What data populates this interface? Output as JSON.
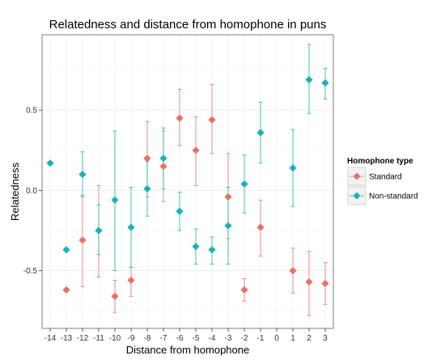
{
  "chart_data": {
    "type": "scatter",
    "title": "Relatedness and distance from homophone in puns",
    "xlabel": "Distance from homophone",
    "ylabel": "Relatedness",
    "x_ticks": [
      "-14",
      "-13",
      "-12",
      "-11",
      "-10",
      "-9",
      "-8",
      "-7",
      "-6",
      "-5",
      "-4",
      "-3",
      "-2",
      "-1",
      "0",
      "1",
      "2",
      "3"
    ],
    "y_ticks": [
      {
        "value": 0.5,
        "label": "0.5"
      },
      {
        "value": 0.0,
        "label": "0.0"
      },
      {
        "value": -0.5,
        "label": "-0.5"
      }
    ],
    "xlim": [
      -14.5,
      3.5
    ],
    "ylim": [
      -0.86,
      0.97
    ],
    "grid": true,
    "legend_title": "Homophone type",
    "legend_position": "right",
    "series": [
      {
        "name": "Standard",
        "color": "#e8706a",
        "points": [
          {
            "x": -13,
            "y": -0.62
          },
          {
            "x": -12,
            "y": -0.31,
            "low": -0.6,
            "high": -0.03
          },
          {
            "x": -11,
            "y": -0.25,
            "low": -0.54,
            "high": 0.03
          },
          {
            "x": -10,
            "y": -0.66,
            "low": -0.76,
            "high": -0.56
          },
          {
            "x": -9,
            "y": -0.56,
            "low": -0.66,
            "high": -0.48
          },
          {
            "x": -8,
            "y": 0.2,
            "low": -0.04,
            "high": 0.43
          },
          {
            "x": -7,
            "y": 0.15,
            "low": -0.07,
            "high": 0.37
          },
          {
            "x": -6,
            "y": 0.45,
            "low": 0.28,
            "high": 0.63
          },
          {
            "x": -5,
            "y": 0.25,
            "low": 0.03,
            "high": 0.46
          },
          {
            "x": -4,
            "y": 0.44,
            "low": 0.23,
            "high": 0.66
          },
          {
            "x": -3,
            "y": -0.04,
            "low": -0.3,
            "high": 0.23
          },
          {
            "x": -2,
            "y": -0.62,
            "low": -0.69,
            "high": -0.55
          },
          {
            "x": -1,
            "y": -0.23,
            "low": -0.41,
            "high": -0.06
          },
          {
            "x": 1,
            "y": -0.5,
            "low": -0.64,
            "high": -0.36
          },
          {
            "x": 2,
            "y": -0.57,
            "low": -0.78,
            "high": -0.38
          },
          {
            "x": 3,
            "y": -0.58,
            "low": -0.71,
            "high": -0.45
          }
        ]
      },
      {
        "name": "Non-standard",
        "color": "#19b2b8",
        "points": [
          {
            "x": -14,
            "y": 0.17
          },
          {
            "x": -13,
            "y": -0.37
          },
          {
            "x": -12,
            "y": 0.1,
            "low": -0.04,
            "high": 0.24
          },
          {
            "x": -11,
            "y": -0.25,
            "low": -0.4,
            "high": -0.09
          },
          {
            "x": -10,
            "y": -0.06,
            "low": -0.5,
            "high": 0.37
          },
          {
            "x": -9,
            "y": -0.23,
            "low": -0.48,
            "high": 0.02
          },
          {
            "x": -8,
            "y": 0.01,
            "low": -0.16,
            "high": 0.18
          },
          {
            "x": -7,
            "y": 0.2,
            "low": 0.01,
            "high": 0.39
          },
          {
            "x": -6,
            "y": -0.13,
            "low": -0.25,
            "high": -0.01
          },
          {
            "x": -5,
            "y": -0.35,
            "low": -0.46,
            "high": -0.24
          },
          {
            "x": -4,
            "y": -0.37,
            "low": -0.46,
            "high": -0.29
          },
          {
            "x": -3,
            "y": -0.22,
            "low": -0.46,
            "high": 0.02
          },
          {
            "x": -2,
            "y": 0.04,
            "low": -0.14,
            "high": 0.22
          },
          {
            "x": -1,
            "y": 0.36,
            "low": 0.17,
            "high": 0.55
          },
          {
            "x": 1,
            "y": 0.14,
            "low": -0.1,
            "high": 0.38
          },
          {
            "x": 2,
            "y": 0.69,
            "low": 0.48,
            "high": 0.91
          },
          {
            "x": 3,
            "y": 0.67,
            "low": 0.57,
            "high": 0.76
          }
        ]
      }
    ]
  }
}
